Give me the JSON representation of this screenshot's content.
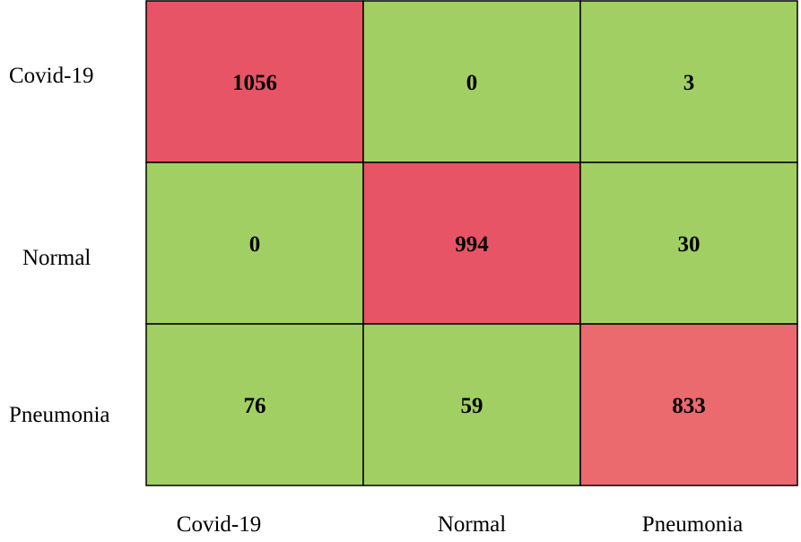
{
  "chart_data": {
    "type": "heatmap",
    "title": "",
    "xlabel": "",
    "ylabel": "",
    "row_labels": [
      "Covid-19",
      "Normal",
      "Pneumonia"
    ],
    "col_labels": [
      "Covid-19",
      "Normal",
      "Pneumonia"
    ],
    "values": [
      [
        1056,
        0,
        3
      ],
      [
        0,
        994,
        30
      ],
      [
        76,
        59,
        833
      ]
    ],
    "colors": {
      "high": "#e75466",
      "mid_high": "#ea6a6e",
      "low": "#a2cf63",
      "border": "#000000"
    }
  }
}
